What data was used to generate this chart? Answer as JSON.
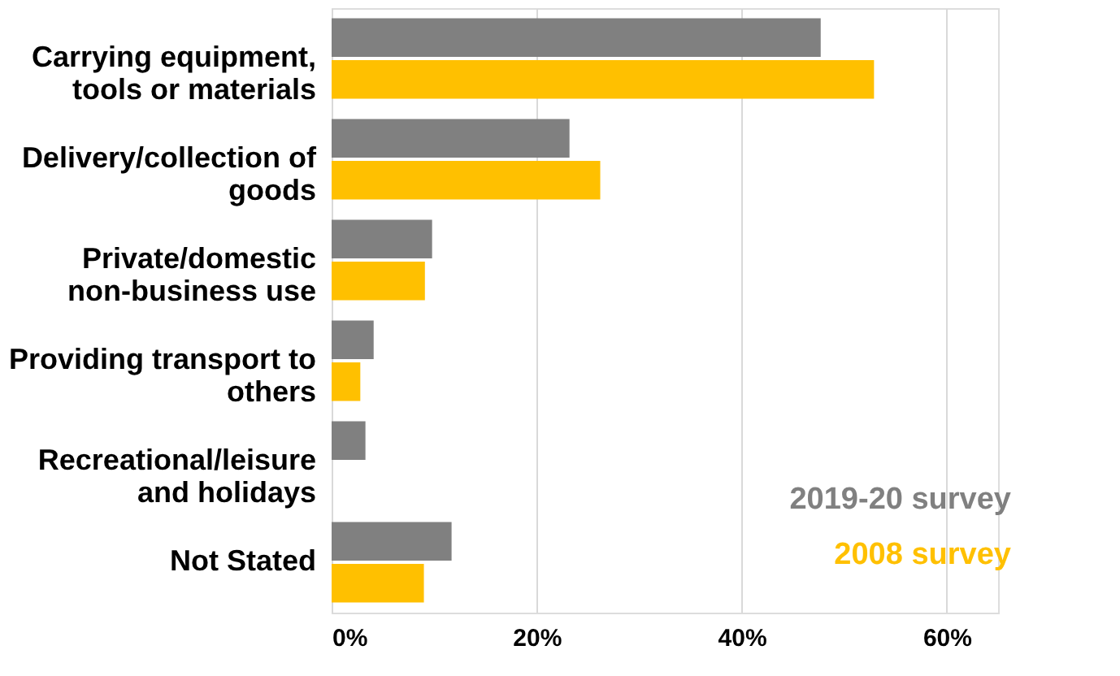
{
  "chart_data": {
    "type": "bar",
    "orientation": "horizontal",
    "categories": [
      "Carrying equipment,\ntools or materials",
      "Delivery/collection of\ngoods",
      "Private/domestic\nnon-business use",
      "Providing transport to\nothers",
      "Recreational/leisure\nand holidays",
      "Not Stated"
    ],
    "series": [
      {
        "name": "2019-20 survey",
        "color": "#808080",
        "values": [
          47.7,
          23.2,
          9.8,
          4.1,
          3.3,
          11.7
        ]
      },
      {
        "name": "2008 survey",
        "color": "#ffc000",
        "values": [
          52.9,
          26.2,
          9.1,
          2.8,
          null,
          9.0
        ]
      }
    ],
    "xlim": [
      0,
      65
    ],
    "xticks": [
      {
        "value": 0,
        "label": "0%"
      },
      {
        "value": 20,
        "label": "20%"
      },
      {
        "value": 40,
        "label": "40%"
      },
      {
        "value": 60,
        "label": "60%"
      }
    ],
    "grid": "x",
    "legend": "bottom right"
  }
}
